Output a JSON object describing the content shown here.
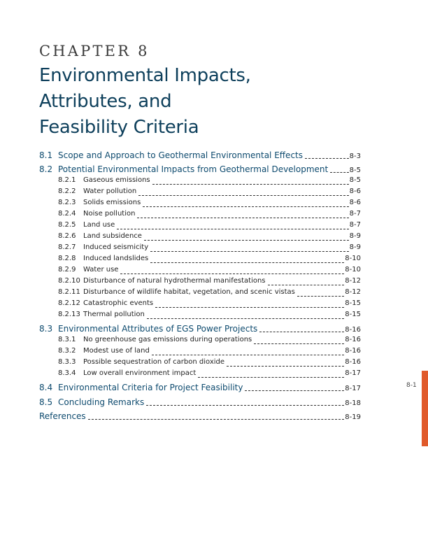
{
  "chapter": {
    "label": "CHAPTER 8",
    "title_lines": [
      "Environmental Impacts,",
      "Attributes, and",
      "Feasibility Criteria"
    ]
  },
  "toc": [
    {
      "level": 1,
      "num": "8.1",
      "title": "Scope and Approach to Geothermal Environmental Effects",
      "page": "8-3"
    },
    {
      "level": 1,
      "num": "8.2",
      "title": "Potential Environmental Impacts from Geothermal Development",
      "page": "8-5"
    },
    {
      "level": 2,
      "num": "8.2.1",
      "title": "Gaseous emissions",
      "page": "8-5"
    },
    {
      "level": 2,
      "num": "8.2.2",
      "title": "Water pollution",
      "page": "8-6"
    },
    {
      "level": 2,
      "num": "8.2.3",
      "title": "Solids emissions",
      "page": "8-6"
    },
    {
      "level": 2,
      "num": "8.2.4",
      "title": "Noise pollution",
      "page": "8-7"
    },
    {
      "level": 2,
      "num": "8.2.5",
      "title": "Land use",
      "page": "8-7"
    },
    {
      "level": 2,
      "num": "8.2.6",
      "title": "Land subsidence",
      "page": "8-9"
    },
    {
      "level": 2,
      "num": "8.2.7",
      "title": "Induced seismicity",
      "page": "8-9"
    },
    {
      "level": 2,
      "num": "8.2.8",
      "title": "Induced landslides",
      "page": "8-10"
    },
    {
      "level": 2,
      "num": "8.2.9",
      "title": "Water use",
      "page": "8-10"
    },
    {
      "level": 2,
      "num": "8.2.10",
      "title": "Disturbance of natural hydrothermal manifestations",
      "page": "8-12"
    },
    {
      "level": 2,
      "num": "8.2.11",
      "title": "Disturbance of wildlife habitat, vegetation, and scenic vistas",
      "page": "8-12"
    },
    {
      "level": 2,
      "num": "8.2.12",
      "title": "Catastrophic events",
      "page": "8-15"
    },
    {
      "level": 2,
      "num": "8.2.13",
      "title": "Thermal pollution",
      "page": "8-15"
    },
    {
      "level": 1,
      "num": "8.3",
      "title": "Environmental Attributes of EGS Power Projects",
      "page": "8-16"
    },
    {
      "level": 2,
      "num": "8.3.1",
      "title": "No greenhouse gas emissions during operations",
      "page": "8-16"
    },
    {
      "level": 2,
      "num": "8.3.2",
      "title": "Modest use of land",
      "page": "8-16"
    },
    {
      "level": 2,
      "num": "8.3.3",
      "title": "Possible sequestration of carbon dioxide",
      "page": "8-16"
    },
    {
      "level": 2,
      "num": "8.3.4",
      "title": "Low overall environment impact",
      "page": "8-17"
    },
    {
      "level": 1,
      "num": "8.4",
      "title": "Environmental Criteria for Project Feasibility",
      "page": "8-17"
    },
    {
      "level": 1,
      "num": "8.5",
      "title": "Concluding Remarks",
      "page": "8-18"
    },
    {
      "level": 0,
      "num": "",
      "title": "References",
      "page": "8-19"
    }
  ],
  "side": {
    "page_number": "8-1",
    "accent_color": "#e05a2b"
  },
  "colors": {
    "heading": "#0d3f5b",
    "section": "#0d4a6e"
  }
}
